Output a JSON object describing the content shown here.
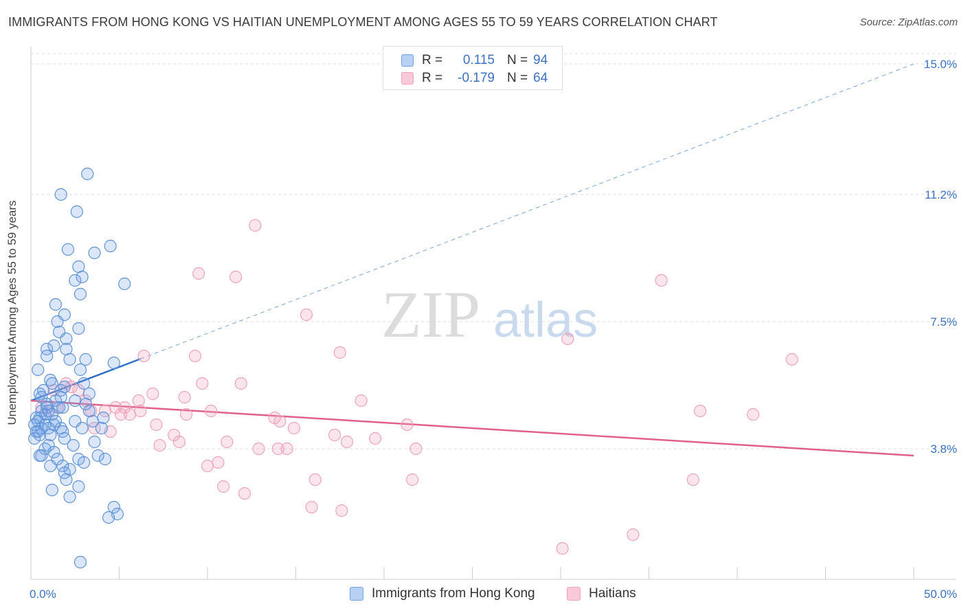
{
  "title": "IMMIGRANTS FROM HONG KONG VS HAITIAN UNEMPLOYMENT AMONG AGES 55 TO 59 YEARS CORRELATION CHART",
  "source": "Source: ZipAtlas.com",
  "watermark": {
    "zip": "ZIP",
    "atlas": "atlas"
  },
  "legend": {
    "rows": [
      {
        "r_label": "R =",
        "r_value": "0.115",
        "n_label": "N =",
        "n_value": "94"
      },
      {
        "r_label": "R =",
        "r_value": "-0.179",
        "n_label": "N =",
        "n_value": "64"
      }
    ]
  },
  "colors": {
    "blue": "#6fa1e2",
    "blue_line": "#3070c8",
    "pink": "#f1a1bb",
    "pink_line": "#e0608a",
    "axis_text": "#3b72c4"
  },
  "chart_data": {
    "type": "scatter",
    "title": "IMMIGRANTS FROM HONG KONG VS HAITIAN UNEMPLOYMENT AMONG AGES 55 TO 59 YEARS CORRELATION CHART",
    "xlabel": "",
    "ylabel": "Unemployment Among Ages 55 to 59 years",
    "xlim": [
      0,
      50
    ],
    "ylim": [
      0,
      15.5
    ],
    "x_tick_labels": [
      {
        "value": 0,
        "label": "0.0%"
      },
      {
        "value": 50,
        "label": "50.0%"
      }
    ],
    "y_tick_labels": [
      {
        "value": 3.8,
        "label": "3.8%"
      },
      {
        "value": 7.5,
        "label": "7.5%"
      },
      {
        "value": 11.2,
        "label": "11.2%"
      },
      {
        "value": 15.0,
        "label": "15.0%"
      }
    ],
    "grid": true,
    "legend_position": "top-center",
    "series": [
      {
        "name": "Immigrants from Hong Kong",
        "R": 0.115,
        "N": 94,
        "trend": {
          "x0": 0,
          "y0": 5.2,
          "x1": 50,
          "y1": 15.0,
          "solid_until_x": 6.2
        },
        "points": [
          [
            3.2,
            11.8
          ],
          [
            1.7,
            11.2
          ],
          [
            2.6,
            10.7
          ],
          [
            4.5,
            9.7
          ],
          [
            2.1,
            9.6
          ],
          [
            3.6,
            9.5
          ],
          [
            2.7,
            9.1
          ],
          [
            2.9,
            8.8
          ],
          [
            2.5,
            8.7
          ],
          [
            5.3,
            8.6
          ],
          [
            2.8,
            8.3
          ],
          [
            1.4,
            8.0
          ],
          [
            1.9,
            7.7
          ],
          [
            1.5,
            7.5
          ],
          [
            2.7,
            7.3
          ],
          [
            1.6,
            7.2
          ],
          [
            2.0,
            7.0
          ],
          [
            1.3,
            6.8
          ],
          [
            0.9,
            6.7
          ],
          [
            2.0,
            6.7
          ],
          [
            0.9,
            6.5
          ],
          [
            2.2,
            6.4
          ],
          [
            3.1,
            6.4
          ],
          [
            4.7,
            6.3
          ],
          [
            2.8,
            6.1
          ],
          [
            0.4,
            6.1
          ],
          [
            1.1,
            5.8
          ],
          [
            3.0,
            5.7
          ],
          [
            1.9,
            5.6
          ],
          [
            1.7,
            5.5
          ],
          [
            0.7,
            5.5
          ],
          [
            0.5,
            5.4
          ],
          [
            1.7,
            5.3
          ],
          [
            0.6,
            5.3
          ],
          [
            3.3,
            5.4
          ],
          [
            1.4,
            5.2
          ],
          [
            3.1,
            5.1
          ],
          [
            1.6,
            5.0
          ],
          [
            0.9,
            5.0
          ],
          [
            1.8,
            5.0
          ],
          [
            0.6,
            4.9
          ],
          [
            1.0,
            4.9
          ],
          [
            0.8,
            4.8
          ],
          [
            1.2,
            4.8
          ],
          [
            0.5,
            4.7
          ],
          [
            0.3,
            4.7
          ],
          [
            4.1,
            4.7
          ],
          [
            3.5,
            4.6
          ],
          [
            2.5,
            4.6
          ],
          [
            0.4,
            4.6
          ],
          [
            0.8,
            4.5
          ],
          [
            1.3,
            4.5
          ],
          [
            0.2,
            4.5
          ],
          [
            0.6,
            4.4
          ],
          [
            1.7,
            4.4
          ],
          [
            1.0,
            4.4
          ],
          [
            2.9,
            4.4
          ],
          [
            4.0,
            4.4
          ],
          [
            0.3,
            4.3
          ],
          [
            1.8,
            4.3
          ],
          [
            0.4,
            4.3
          ],
          [
            1.1,
            4.2
          ],
          [
            0.5,
            4.2
          ],
          [
            1.9,
            4.1
          ],
          [
            0.2,
            4.1
          ],
          [
            3.6,
            4.0
          ],
          [
            2.4,
            3.9
          ],
          [
            1.0,
            3.9
          ],
          [
            0.8,
            3.8
          ],
          [
            1.3,
            3.7
          ],
          [
            0.5,
            3.6
          ],
          [
            3.8,
            3.6
          ],
          [
            4.2,
            3.5
          ],
          [
            1.5,
            3.5
          ],
          [
            2.7,
            3.5
          ],
          [
            3.0,
            3.4
          ],
          [
            1.1,
            3.3
          ],
          [
            1.8,
            3.3
          ],
          [
            2.2,
            3.2
          ],
          [
            1.9,
            3.1
          ],
          [
            0.6,
            3.6
          ],
          [
            2.0,
            2.9
          ],
          [
            2.7,
            2.7
          ],
          [
            2.2,
            2.4
          ],
          [
            1.2,
            2.6
          ],
          [
            4.7,
            2.1
          ],
          [
            4.9,
            1.9
          ],
          [
            4.4,
            1.8
          ],
          [
            2.8,
            0.5
          ],
          [
            0.9,
            5.1
          ],
          [
            1.4,
            4.6
          ],
          [
            3.3,
            4.9
          ],
          [
            2.5,
            5.2
          ],
          [
            1.2,
            5.7
          ]
        ]
      },
      {
        "name": "Haitians",
        "R": -0.179,
        "N": 64,
        "trend": {
          "x0": 0,
          "y0": 5.2,
          "x1": 50,
          "y1": 3.6
        },
        "points": [
          [
            12.7,
            10.3
          ],
          [
            9.5,
            8.9
          ],
          [
            11.6,
            8.8
          ],
          [
            35.7,
            8.7
          ],
          [
            15.6,
            7.7
          ],
          [
            30.4,
            7.0
          ],
          [
            17.5,
            6.6
          ],
          [
            6.4,
            6.5
          ],
          [
            9.3,
            6.5
          ],
          [
            43.1,
            6.4
          ],
          [
            2.0,
            5.7
          ],
          [
            9.7,
            5.7
          ],
          [
            11.9,
            5.7
          ],
          [
            2.3,
            5.6
          ],
          [
            1.3,
            5.5
          ],
          [
            2.7,
            5.5
          ],
          [
            6.9,
            5.4
          ],
          [
            3.1,
            5.2
          ],
          [
            8.7,
            5.3
          ],
          [
            18.7,
            5.2
          ],
          [
            1.5,
            5.0
          ],
          [
            4.8,
            5.0
          ],
          [
            5.3,
            5.0
          ],
          [
            6.1,
            5.2
          ],
          [
            0.6,
            5.0
          ],
          [
            1.0,
            4.9
          ],
          [
            3.4,
            4.9
          ],
          [
            4.2,
            4.9
          ],
          [
            6.2,
            4.9
          ],
          [
            5.1,
            4.8
          ],
          [
            10.2,
            4.9
          ],
          [
            5.6,
            4.8
          ],
          [
            8.8,
            4.8
          ],
          [
            13.8,
            4.7
          ],
          [
            14.1,
            4.6
          ],
          [
            37.9,
            4.9
          ],
          [
            40.9,
            4.8
          ],
          [
            21.3,
            4.5
          ],
          [
            7.1,
            4.5
          ],
          [
            3.6,
            4.4
          ],
          [
            14.9,
            4.4
          ],
          [
            4.5,
            4.3
          ],
          [
            8.1,
            4.2
          ],
          [
            17.2,
            4.2
          ],
          [
            19.5,
            4.1
          ],
          [
            11.1,
            4.0
          ],
          [
            17.9,
            4.0
          ],
          [
            8.4,
            4.0
          ],
          [
            7.3,
            3.9
          ],
          [
            12.9,
            3.8
          ],
          [
            14.5,
            3.8
          ],
          [
            21.8,
            3.8
          ],
          [
            10.6,
            3.4
          ],
          [
            10.0,
            3.3
          ],
          [
            16.1,
            2.9
          ],
          [
            21.6,
            2.9
          ],
          [
            37.5,
            2.9
          ],
          [
            10.9,
            2.7
          ],
          [
            12.1,
            2.5
          ],
          [
            14.0,
            3.8
          ],
          [
            15.9,
            2.1
          ],
          [
            17.6,
            2.0
          ],
          [
            34.1,
            1.3
          ],
          [
            30.1,
            0.9
          ]
        ]
      }
    ]
  },
  "bottom_legend": [
    {
      "label": "Immigrants from Hong Kong"
    },
    {
      "label": "Haitians"
    }
  ]
}
